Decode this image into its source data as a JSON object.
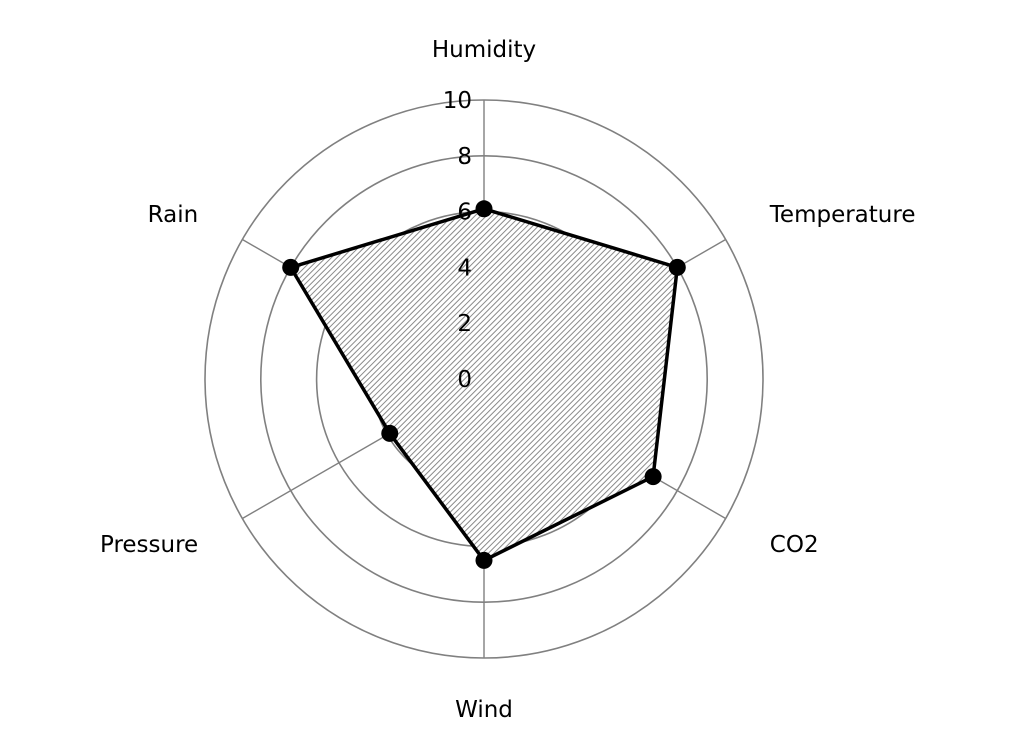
{
  "chart_data": {
    "type": "radar",
    "title": "",
    "categories": [
      "Humidity",
      "Temperature",
      "CO2",
      "Wind",
      "Pressure",
      "Rain"
    ],
    "series": [
      {
        "values": [
          6.1,
          8.0,
          7.0,
          6.5,
          3.9,
          8.0
        ]
      }
    ],
    "rlim": [
      0,
      10
    ],
    "ticks": [
      "0",
      "2",
      "4",
      "6",
      "8",
      "10"
    ],
    "grid": true,
    "legend": "none",
    "colors": {
      "line": "#000000",
      "grid": "#808080",
      "fill_pattern": "hatched-gray"
    }
  }
}
